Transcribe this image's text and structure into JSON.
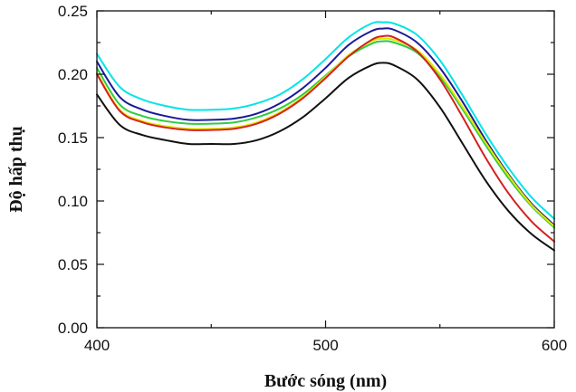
{
  "chart_data": {
    "type": "line",
    "title": "",
    "xlabel": "Bước sóng (nm)",
    "ylabel": "Độ hấp thụ",
    "xlim": [
      400,
      600
    ],
    "ylim": [
      0.0,
      0.25
    ],
    "x_ticks": [
      400,
      500,
      600
    ],
    "x_tick_labels": [
      "400",
      "500",
      "600"
    ],
    "y_ticks": [
      0.0,
      0.05,
      0.1,
      0.15,
      0.2,
      0.25
    ],
    "y_tick_labels": [
      "0.00",
      "0.05",
      "0.10",
      "0.15",
      "0.20",
      "0.25"
    ],
    "grid": false,
    "legend": "none",
    "x": [
      400,
      410,
      420,
      430,
      440,
      450,
      460,
      470,
      480,
      490,
      500,
      510,
      520,
      525,
      530,
      540,
      550,
      560,
      570,
      580,
      590,
      600
    ],
    "series": [
      {
        "color": "#00e5e5",
        "values": [
          0.216,
          0.19,
          0.18,
          0.175,
          0.172,
          0.172,
          0.173,
          0.177,
          0.184,
          0.196,
          0.212,
          0.229,
          0.24,
          0.241,
          0.24,
          0.231,
          0.211,
          0.183,
          0.153,
          0.126,
          0.103,
          0.086
        ]
      },
      {
        "color": "#1a1a99",
        "values": [
          0.21,
          0.182,
          0.172,
          0.167,
          0.164,
          0.164,
          0.165,
          0.169,
          0.177,
          0.189,
          0.205,
          0.223,
          0.234,
          0.236,
          0.235,
          0.225,
          0.205,
          0.178,
          0.148,
          0.121,
          0.098,
          0.081
        ]
      },
      {
        "color": "#2ecc40",
        "values": [
          0.205,
          0.176,
          0.167,
          0.163,
          0.161,
          0.161,
          0.162,
          0.166,
          0.173,
          0.184,
          0.199,
          0.214,
          0.224,
          0.226,
          0.225,
          0.217,
          0.198,
          0.172,
          0.144,
          0.118,
          0.096,
          0.079
        ]
      },
      {
        "color": "#e5e500",
        "values": [
          0.201,
          0.172,
          0.163,
          0.159,
          0.157,
          0.157,
          0.158,
          0.162,
          0.17,
          0.182,
          0.198,
          0.215,
          0.226,
          0.228,
          0.227,
          0.219,
          0.2,
          0.174,
          0.146,
          0.12,
          0.097,
          0.08
        ]
      },
      {
        "color": "#d42020",
        "values": [
          0.2,
          0.171,
          0.162,
          0.158,
          0.156,
          0.156,
          0.157,
          0.161,
          0.169,
          0.181,
          0.197,
          0.214,
          0.227,
          0.23,
          0.229,
          0.218,
          0.196,
          0.166,
          0.134,
          0.106,
          0.084,
          0.068
        ]
      },
      {
        "color": "#111111",
        "values": [
          0.184,
          0.16,
          0.152,
          0.148,
          0.145,
          0.145,
          0.145,
          0.148,
          0.155,
          0.166,
          0.181,
          0.197,
          0.207,
          0.209,
          0.207,
          0.196,
          0.174,
          0.145,
          0.116,
          0.092,
          0.074,
          0.061
        ]
      }
    ]
  }
}
